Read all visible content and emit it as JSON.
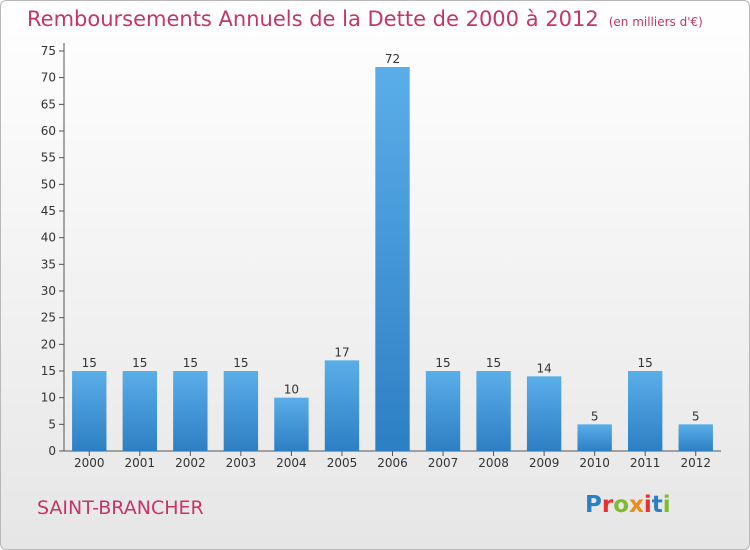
{
  "title": "Remboursements Annuels de la Dette de 2000 à 2012",
  "unit": "(en milliers d'€)",
  "place": "SAINT-BRANCHER",
  "brand": "Proxiti",
  "colors": {
    "title": "#c4356a",
    "bar_top": "#5aaee8",
    "bar_bottom": "#2d7fc4",
    "axis": "#555555",
    "logo": [
      "#2d7fc4",
      "#e8312f",
      "#7dbb2f",
      "#f08c1a",
      "#e8312f",
      "#2d7fc4",
      "#7dbb2f"
    ]
  },
  "chart_data": {
    "type": "bar",
    "title": "Remboursements Annuels de la Dette de 2000 à 2012",
    "categories": [
      "2000",
      "2001",
      "2002",
      "2003",
      "2004",
      "2005",
      "2006",
      "2007",
      "2008",
      "2009",
      "2010",
      "2011",
      "2012"
    ],
    "values": [
      15,
      15,
      15,
      15,
      10,
      17,
      72,
      15,
      15,
      14,
      5,
      15,
      5
    ],
    "xlabel": "",
    "ylabel": "",
    "ylim": [
      0,
      75
    ],
    "yticks": [
      0,
      5,
      10,
      15,
      20,
      25,
      30,
      35,
      40,
      45,
      50,
      55,
      60,
      65,
      70,
      75
    ],
    "grid": false,
    "data_labels": true
  }
}
